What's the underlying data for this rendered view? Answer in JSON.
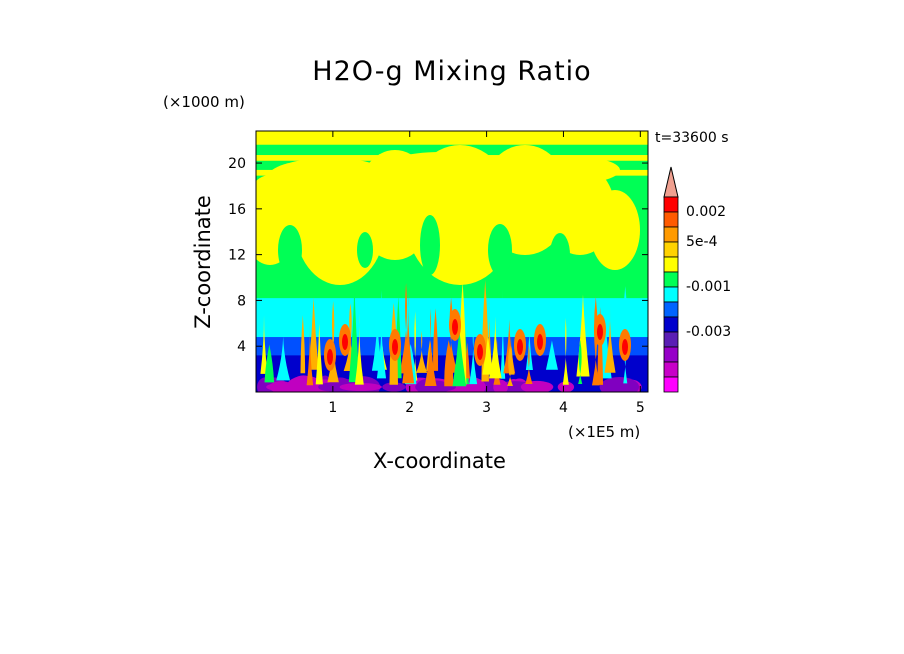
{
  "chart_data": {
    "type": "heatmap",
    "title": "H2O-g Mixing Ratio",
    "xlabel": "X-coordinate",
    "ylabel": "Z-coordinate",
    "x_unit": "(×1E5 m)",
    "y_unit": "(×1000 m)",
    "time_label": "t=33600 s",
    "xlim": [
      0,
      5.1
    ],
    "ylim": [
      0,
      22.8
    ],
    "x_ticks": [
      {
        "value": 1,
        "label": "1"
      },
      {
        "value": 2,
        "label": "2"
      },
      {
        "value": 3,
        "label": "3"
      },
      {
        "value": 4,
        "label": "4"
      },
      {
        "value": 5,
        "label": "5"
      }
    ],
    "y_ticks": [
      {
        "value": 4,
        "label": "4"
      },
      {
        "value": 8,
        "label": "8"
      },
      {
        "value": 12,
        "label": "12"
      },
      {
        "value": 16,
        "label": "16"
      },
      {
        "value": 20,
        "label": "20"
      }
    ],
    "colorbar": {
      "levels_top_to_bottom": [
        {
          "color": "#ff0000"
        },
        {
          "color": "#ff5a00"
        },
        {
          "color": "#ff9a00"
        },
        {
          "color": "#ffd200"
        },
        {
          "color": "#ffff00"
        },
        {
          "color": "#00ff55"
        },
        {
          "color": "#00ffff"
        },
        {
          "color": "#0064ff"
        },
        {
          "color": "#0000cc"
        },
        {
          "color": "#5a1eb4"
        },
        {
          "color": "#9600c8"
        },
        {
          "color": "#c800c8"
        },
        {
          "color": "#ff00ff"
        }
      ],
      "overflow_color": "#f0a090",
      "labels": [
        {
          "text": "0.002",
          "level_index": 1
        },
        {
          "text": "5e-4",
          "level_index": 3
        },
        {
          "text": "-0.001",
          "level_index": 6
        },
        {
          "text": "-0.003",
          "level_index": 9
        }
      ]
    },
    "field_description_bands": [
      {
        "z_from": 0,
        "z_to": 2.2,
        "dominant": "purple/blue"
      },
      {
        "z_from": 2.2,
        "z_to": 5,
        "dominant": "blue"
      },
      {
        "z_from": 5,
        "z_to": 8,
        "dominant": "cyan"
      },
      {
        "z_from": 8,
        "z_to": 22.8,
        "dominant": "green/yellow"
      }
    ]
  },
  "colors": {
    "red": "#ff0000",
    "orange": "#ff7a00",
    "lightorange": "#ffb000",
    "yellow": "#ffff00",
    "green": "#00ff55",
    "cyan": "#00ffff",
    "blue": "#0050ff",
    "darkblue": "#0000cc",
    "purple": "#8000c0",
    "magenta": "#c000c0"
  }
}
